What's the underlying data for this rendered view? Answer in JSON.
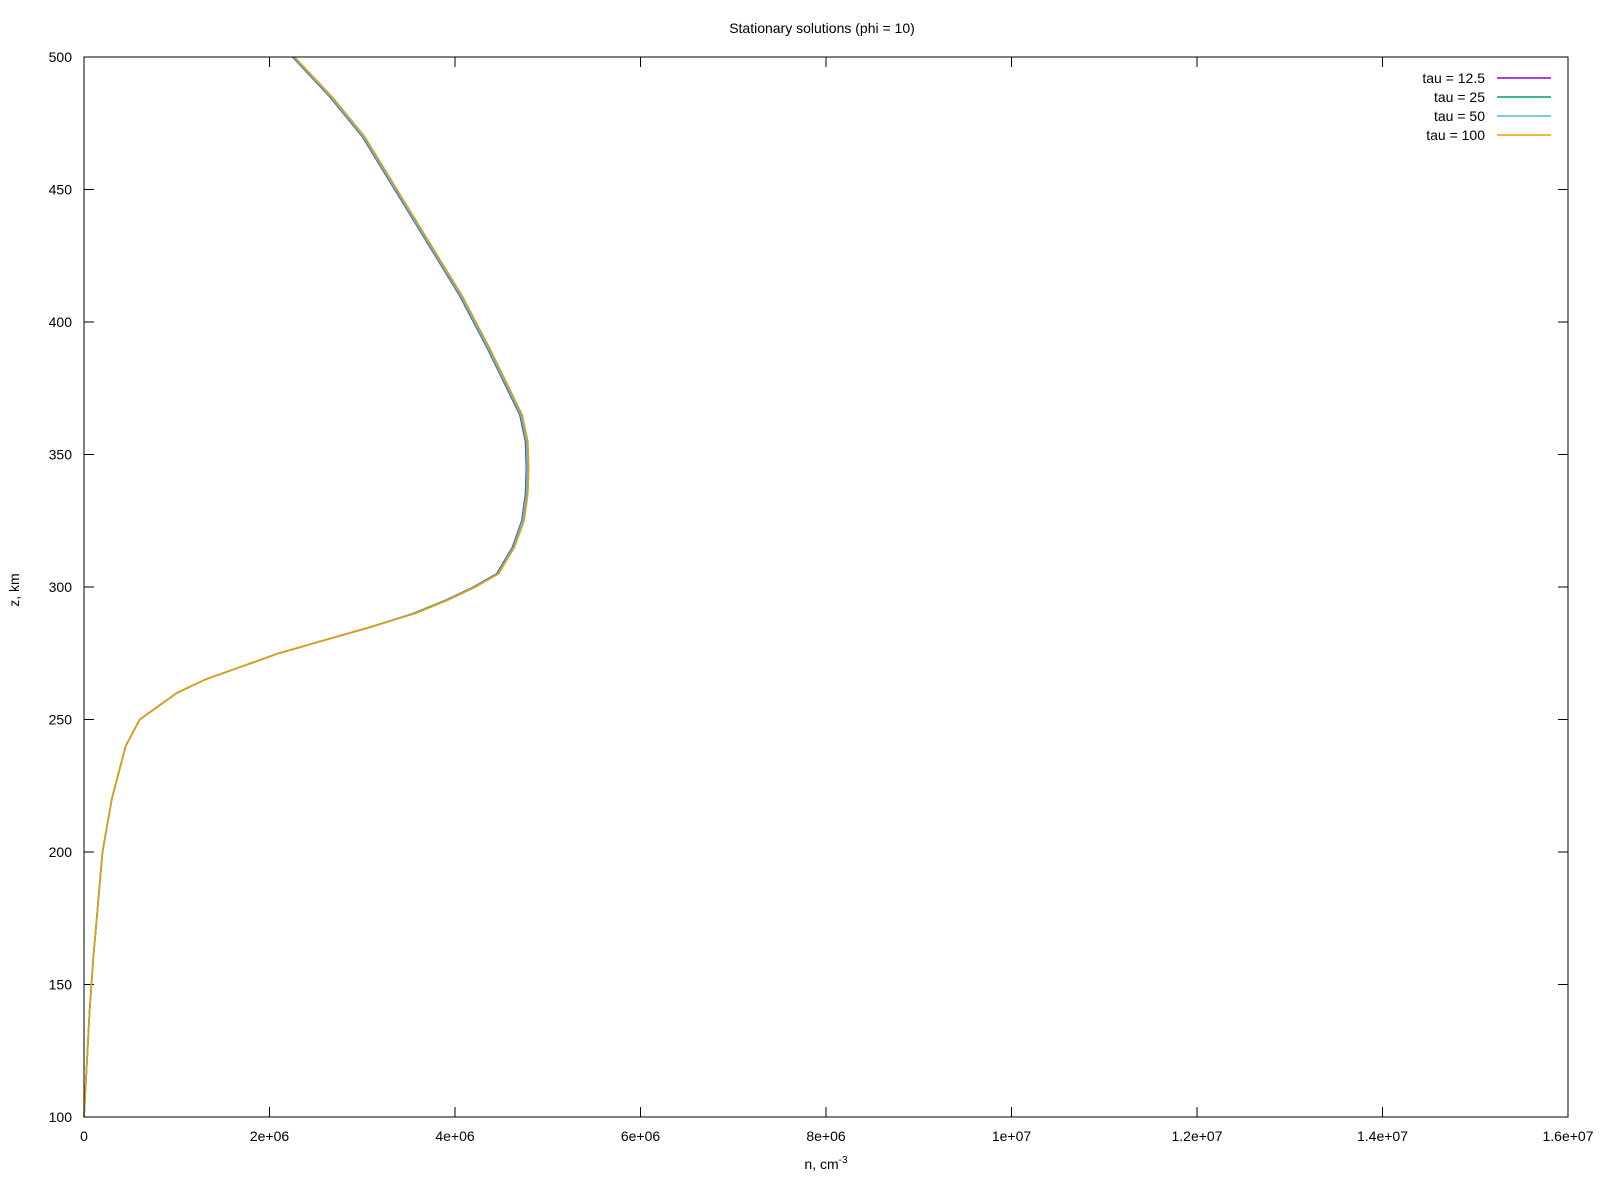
{
  "chart_data": {
    "type": "line",
    "title": "Stationary solutions (phi = 10)",
    "xlabel": {
      "base": "n, cm",
      "superscript": "-3"
    },
    "ylabel": "z, km",
    "xlim": [
      0,
      16000000
    ],
    "ylim": [
      100,
      500
    ],
    "x_ticks": [
      {
        "value": 0,
        "label": "0"
      },
      {
        "value": 2000000,
        "label": "2e+06"
      },
      {
        "value": 4000000,
        "label": "4e+06"
      },
      {
        "value": 6000000,
        "label": "6e+06"
      },
      {
        "value": 8000000,
        "label": "8e+06"
      },
      {
        "value": 10000000,
        "label": "1e+07"
      },
      {
        "value": 12000000,
        "label": "1.2e+07"
      },
      {
        "value": 14000000,
        "label": "1.4e+07"
      },
      {
        "value": 16000000,
        "label": "1.6e+07"
      }
    ],
    "y_ticks": [
      {
        "value": 100,
        "label": "100"
      },
      {
        "value": 150,
        "label": "150"
      },
      {
        "value": 200,
        "label": "200"
      },
      {
        "value": 250,
        "label": "250"
      },
      {
        "value": 300,
        "label": "300"
      },
      {
        "value": 350,
        "label": "350"
      },
      {
        "value": 400,
        "label": "400"
      },
      {
        "value": 450,
        "label": "450"
      },
      {
        "value": 500,
        "label": "500"
      }
    ],
    "grid": false,
    "legend_position": "top-right",
    "series": [
      {
        "name": "tau = 12.5",
        "color": "#9400d3",
        "x": [
          0,
          30000,
          60000,
          100000,
          150000,
          200000,
          300000,
          450000,
          600000,
          800000,
          1000000,
          1300000,
          1700000,
          2100000,
          2600000,
          3100000,
          3550000,
          3900000,
          4200000,
          4450000,
          4620000,
          4720000,
          4760000,
          4770000,
          4760000,
          4700000,
          4560000,
          4350000,
          4050000,
          3700000,
          3350000,
          3000000,
          2650000,
          2250000
        ],
        "y": [
          100,
          120,
          140,
          160,
          180,
          200,
          220,
          240,
          250,
          255,
          260,
          265,
          270,
          275,
          280,
          285,
          290,
          295,
          300,
          305,
          315,
          325,
          335,
          345,
          355,
          365,
          375,
          390,
          410,
          430,
          450,
          470,
          485,
          500
        ]
      },
      {
        "name": "tau = 25",
        "color": "#009e73",
        "x": [
          0,
          30000,
          60000,
          100000,
          150000,
          200000,
          300000,
          450000,
          600000,
          800000,
          1000000,
          1300000,
          1700000,
          2100000,
          2600000,
          3100000,
          3555000,
          3905000,
          4205000,
          4455000,
          4625000,
          4725000,
          4765000,
          4775000,
          4765000,
          4705000,
          4565000,
          4355000,
          4055000,
          3705000,
          3355000,
          3005000,
          2655000,
          2255000
        ],
        "y": [
          100,
          120,
          140,
          160,
          180,
          200,
          220,
          240,
          250,
          255,
          260,
          265,
          270,
          275,
          280,
          285,
          290,
          295,
          300,
          305,
          315,
          325,
          335,
          345,
          355,
          365,
          375,
          390,
          410,
          430,
          450,
          470,
          485,
          500
        ]
      },
      {
        "name": "tau = 50",
        "color": "#56b4e9",
        "x": [
          0,
          30000,
          60000,
          100000,
          150000,
          200000,
          300000,
          450000,
          600000,
          800000,
          1000000,
          1300000,
          1700000,
          2100000,
          2600000,
          3100000,
          3560000,
          3910000,
          4210000,
          4460000,
          4630000,
          4730000,
          4770000,
          4780000,
          4770000,
          4710000,
          4570000,
          4360000,
          4060000,
          3710000,
          3360000,
          3010000,
          2660000,
          2260000
        ],
        "y": [
          100,
          120,
          140,
          160,
          180,
          200,
          220,
          240,
          250,
          255,
          260,
          265,
          270,
          275,
          280,
          285,
          290,
          295,
          300,
          305,
          315,
          325,
          335,
          345,
          355,
          365,
          375,
          390,
          410,
          430,
          450,
          470,
          485,
          500
        ]
      },
      {
        "name": "tau = 100",
        "color": "#e69f00",
        "x": [
          0,
          30000,
          60000,
          100000,
          150000,
          200000,
          300000,
          450000,
          600000,
          800000,
          1000000,
          1300000,
          1700000,
          2100000,
          2600000,
          3100000,
          3570000,
          3920000,
          4220000,
          4470000,
          4640000,
          4745000,
          4785000,
          4795000,
          4785000,
          4725000,
          4585000,
          4375000,
          4075000,
          3725000,
          3375000,
          3025000,
          2675000,
          2270000
        ],
        "y": [
          100,
          120,
          140,
          160,
          180,
          200,
          220,
          240,
          250,
          255,
          260,
          265,
          270,
          275,
          280,
          285,
          290,
          295,
          300,
          305,
          315,
          325,
          335,
          345,
          355,
          365,
          375,
          390,
          410,
          430,
          450,
          470,
          485,
          500
        ]
      }
    ]
  }
}
